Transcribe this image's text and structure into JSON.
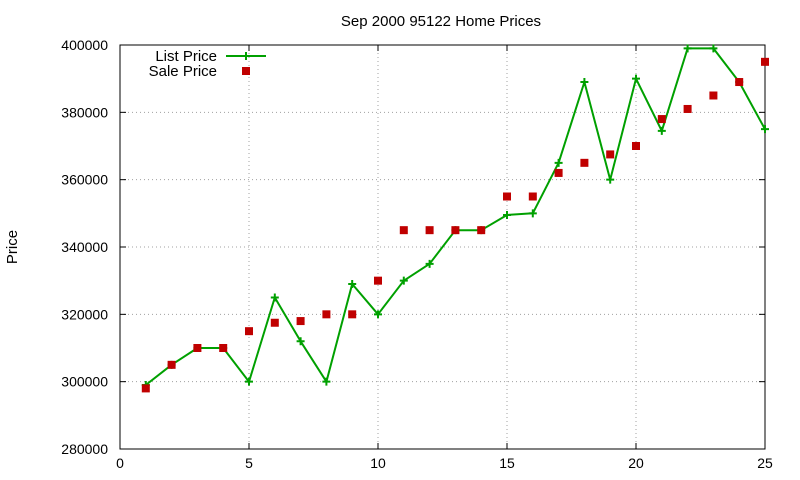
{
  "chart_data": {
    "type": "line",
    "title": "Sep 2000 95122 Home Prices",
    "xlabel": "",
    "ylabel": "Price",
    "xlim": [
      0,
      25
    ],
    "ylim": [
      280000,
      400000
    ],
    "xticks": [
      0,
      5,
      10,
      15,
      20,
      25
    ],
    "yticks": [
      280000,
      300000,
      320000,
      340000,
      360000,
      380000,
      400000
    ],
    "x_tick_labels": [
      "0",
      "5",
      "10",
      "15",
      "20",
      "25"
    ],
    "y_tick_labels": [
      "280000",
      "300000",
      "320000",
      "340000",
      "360000",
      "380000",
      "400000"
    ],
    "grid": true,
    "legend_position": "top-left",
    "series": [
      {
        "name": "List Price",
        "style": "lines+points",
        "marker": "plus",
        "color": "#00a000",
        "x": [
          1,
          2,
          3,
          4,
          5,
          6,
          7,
          8,
          9,
          10,
          11,
          12,
          13,
          14,
          15,
          16,
          17,
          18,
          19,
          20,
          21,
          22,
          23,
          24,
          25
        ],
        "values": [
          299000,
          305000,
          310000,
          310000,
          300000,
          325000,
          312000,
          300000,
          329000,
          320000,
          330000,
          335000,
          345000,
          345000,
          349500,
          350000,
          365000,
          389000,
          360000,
          390000,
          374500,
          399000,
          399000,
          389000,
          375000
        ]
      },
      {
        "name": "Sale Price",
        "style": "points",
        "marker": "square",
        "color": "#c00000",
        "x": [
          1,
          2,
          3,
          4,
          5,
          6,
          7,
          8,
          9,
          10,
          11,
          12,
          13,
          14,
          15,
          16,
          17,
          18,
          19,
          20,
          21,
          22,
          23,
          24,
          25
        ],
        "values": [
          298000,
          305000,
          310000,
          310000,
          315000,
          317500,
          318000,
          320000,
          320000,
          330000,
          345000,
          345000,
          345000,
          345000,
          355000,
          355000,
          362000,
          365000,
          367500,
          370000,
          378000,
          381000,
          385000,
          389000,
          395000
        ]
      }
    ]
  }
}
